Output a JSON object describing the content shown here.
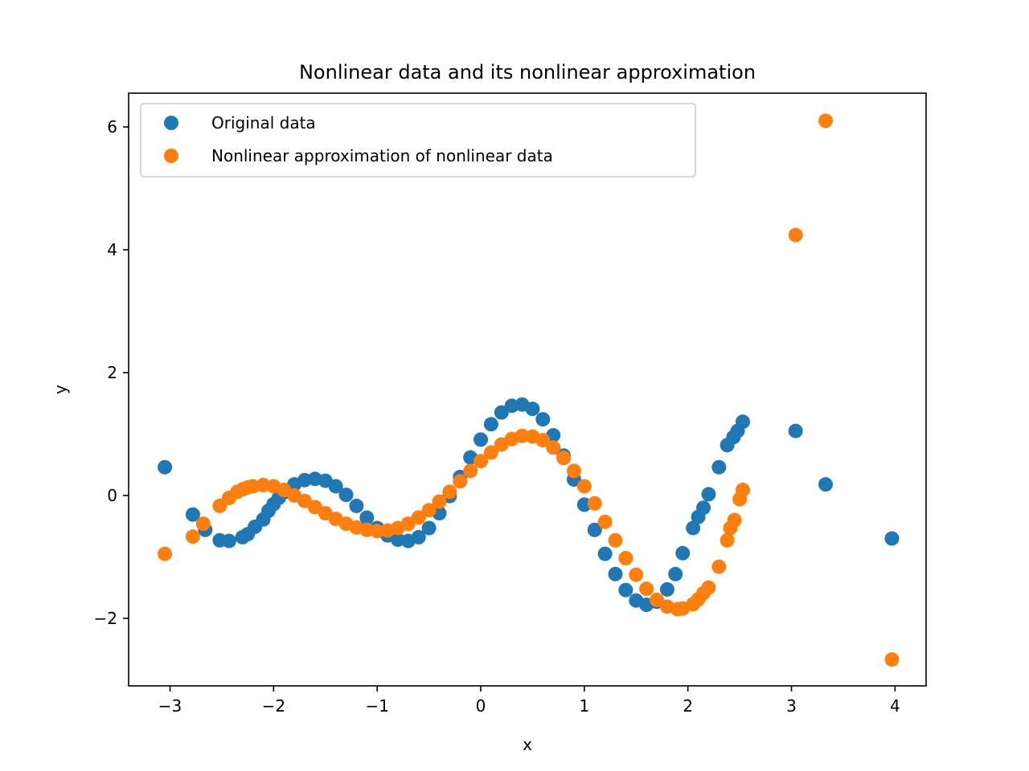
{
  "chart_data": {
    "type": "scatter",
    "title": "Nonlinear data and its nonlinear approximation",
    "xlabel": "x",
    "ylabel": "y",
    "xlim": [
      -3.4,
      4.3
    ],
    "ylim": [
      -3.1,
      6.55
    ],
    "xticks": [
      -3,
      -2,
      -1,
      0,
      1,
      2,
      3,
      4
    ],
    "xtick_labels": [
      "−3",
      "−2",
      "−1",
      "0",
      "1",
      "2",
      "3",
      "4"
    ],
    "yticks": [
      -2,
      0,
      2,
      4,
      6
    ],
    "ytick_labels": [
      "−2",
      "0",
      "2",
      "4",
      "6"
    ],
    "grid": false,
    "legend_position": "upper-left",
    "series": [
      {
        "name": "Original data",
        "color": "#1f77b4",
        "points": [
          [
            -3.05,
            0.46
          ],
          [
            -2.78,
            -0.31
          ],
          [
            -2.66,
            -0.56
          ],
          [
            -2.52,
            -0.73
          ],
          [
            -2.43,
            -0.74
          ],
          [
            -2.3,
            -0.68
          ],
          [
            -2.25,
            -0.63
          ],
          [
            -2.18,
            -0.51
          ],
          [
            -2.1,
            -0.39
          ],
          [
            -2.05,
            -0.25
          ],
          [
            -2.0,
            -0.14
          ],
          [
            -1.95,
            -0.04
          ],
          [
            -1.9,
            0.05
          ],
          [
            -1.8,
            0.18
          ],
          [
            -1.7,
            0.25
          ],
          [
            -1.6,
            0.27
          ],
          [
            -1.5,
            0.24
          ],
          [
            -1.4,
            0.15
          ],
          [
            -1.3,
            0.01
          ],
          [
            -1.2,
            -0.17
          ],
          [
            -1.1,
            -0.36
          ],
          [
            -1.0,
            -0.53
          ],
          [
            -0.9,
            -0.65
          ],
          [
            -0.8,
            -0.72
          ],
          [
            -0.7,
            -0.74
          ],
          [
            -0.6,
            -0.68
          ],
          [
            -0.5,
            -0.53
          ],
          [
            -0.4,
            -0.29
          ],
          [
            -0.3,
            -0.01
          ],
          [
            -0.2,
            0.3
          ],
          [
            -0.1,
            0.62
          ],
          [
            0.0,
            0.91
          ],
          [
            0.1,
            1.16
          ],
          [
            0.2,
            1.35
          ],
          [
            0.3,
            1.46
          ],
          [
            0.4,
            1.48
          ],
          [
            0.5,
            1.41
          ],
          [
            0.6,
            1.24
          ],
          [
            0.7,
            0.98
          ],
          [
            0.8,
            0.65
          ],
          [
            0.9,
            0.26
          ],
          [
            1.0,
            -0.15
          ],
          [
            1.1,
            -0.56
          ],
          [
            1.2,
            -0.95
          ],
          [
            1.3,
            -1.28
          ],
          [
            1.4,
            -1.54
          ],
          [
            1.5,
            -1.71
          ],
          [
            1.6,
            -1.78
          ],
          [
            1.7,
            -1.73
          ],
          [
            1.8,
            -1.53
          ],
          [
            1.88,
            -1.28
          ],
          [
            1.95,
            -0.94
          ],
          [
            2.05,
            -0.53
          ],
          [
            2.1,
            -0.35
          ],
          [
            2.15,
            -0.2
          ],
          [
            2.2,
            0.02
          ],
          [
            2.3,
            0.46
          ],
          [
            2.38,
            0.82
          ],
          [
            2.44,
            0.95
          ],
          [
            2.48,
            1.05
          ],
          [
            2.53,
            1.2
          ],
          [
            3.04,
            1.05
          ],
          [
            3.33,
            0.18
          ],
          [
            3.97,
            -0.7
          ]
        ]
      },
      {
        "name": "Nonlinear approximation of nonlinear data",
        "color": "#ff7f0e",
        "points": [
          [
            -3.05,
            -0.95
          ],
          [
            -2.78,
            -0.67
          ],
          [
            -2.68,
            -0.46
          ],
          [
            -2.52,
            -0.17
          ],
          [
            -2.43,
            -0.04
          ],
          [
            -2.35,
            0.06
          ],
          [
            -2.3,
            0.1
          ],
          [
            -2.25,
            0.13
          ],
          [
            -2.2,
            0.15
          ],
          [
            -2.1,
            0.17
          ],
          [
            -2.0,
            0.15
          ],
          [
            -1.9,
            0.09
          ],
          [
            -1.8,
            0.0
          ],
          [
            -1.7,
            -0.09
          ],
          [
            -1.6,
            -0.19
          ],
          [
            -1.5,
            -0.29
          ],
          [
            -1.4,
            -0.38
          ],
          [
            -1.3,
            -0.46
          ],
          [
            -1.2,
            -0.52
          ],
          [
            -1.1,
            -0.56
          ],
          [
            -1.0,
            -0.58
          ],
          [
            -0.9,
            -0.57
          ],
          [
            -0.8,
            -0.53
          ],
          [
            -0.7,
            -0.46
          ],
          [
            -0.6,
            -0.36
          ],
          [
            -0.5,
            -0.24
          ],
          [
            -0.4,
            -0.1
          ],
          [
            -0.3,
            0.06
          ],
          [
            -0.2,
            0.23
          ],
          [
            -0.1,
            0.4
          ],
          [
            0.0,
            0.56
          ],
          [
            0.1,
            0.7
          ],
          [
            0.2,
            0.83
          ],
          [
            0.3,
            0.92
          ],
          [
            0.4,
            0.97
          ],
          [
            0.5,
            0.96
          ],
          [
            0.6,
            0.9
          ],
          [
            0.7,
            0.78
          ],
          [
            0.8,
            0.61
          ],
          [
            0.9,
            0.4
          ],
          [
            1.0,
            0.15
          ],
          [
            1.1,
            -0.13
          ],
          [
            1.2,
            -0.43
          ],
          [
            1.3,
            -0.73
          ],
          [
            1.4,
            -1.02
          ],
          [
            1.5,
            -1.29
          ],
          [
            1.6,
            -1.52
          ],
          [
            1.7,
            -1.7
          ],
          [
            1.8,
            -1.81
          ],
          [
            1.9,
            -1.85
          ],
          [
            1.95,
            -1.84
          ],
          [
            2.05,
            -1.77
          ],
          [
            2.1,
            -1.69
          ],
          [
            2.15,
            -1.59
          ],
          [
            2.2,
            -1.5
          ],
          [
            2.3,
            -1.16
          ],
          [
            2.38,
            -0.73
          ],
          [
            2.41,
            -0.53
          ],
          [
            2.45,
            -0.4
          ],
          [
            2.5,
            -0.06
          ],
          [
            2.53,
            0.09
          ],
          [
            3.04,
            4.24
          ],
          [
            3.33,
            6.1
          ],
          [
            3.97,
            -2.67
          ]
        ]
      }
    ]
  }
}
